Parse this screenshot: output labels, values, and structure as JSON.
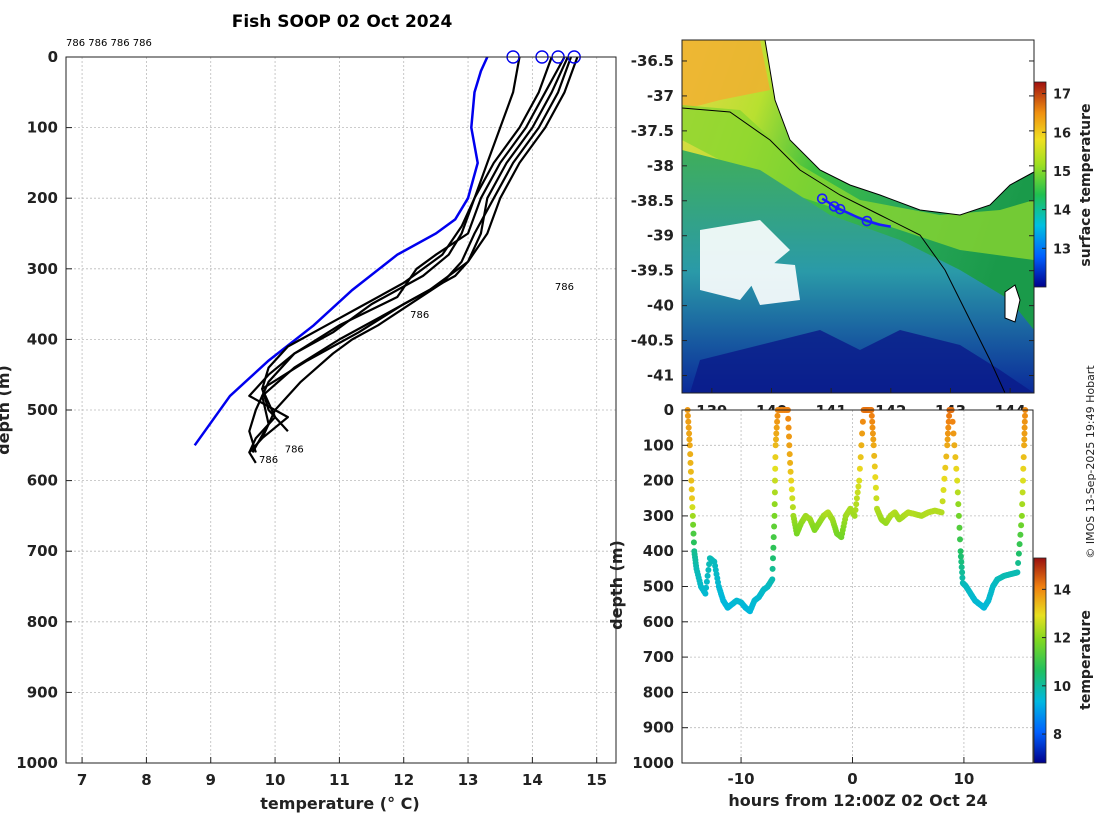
{
  "title": "Fish SOOP 02 Oct 2024",
  "credit": "© IMOS 13-Sep-2025 19:49 Hobart",
  "colors": {
    "profile": "#000000",
    "climatology": "#0000ee",
    "track": "#1a1aff"
  },
  "chart_data": [
    {
      "type": "line",
      "name": "temperature-depth-profiles",
      "xlabel": "temperature (° C)",
      "ylabel": "depth (m)",
      "xlim": [
        6.75,
        15.3
      ],
      "ylim": [
        1000,
        0
      ],
      "xticks": [
        7,
        8,
        9,
        10,
        11,
        12,
        13,
        14,
        15
      ],
      "yticks": [
        0,
        100,
        200,
        300,
        400,
        500,
        600,
        700,
        800,
        900,
        1000
      ],
      "top_labels": "786 786 786 786",
      "profile_label": "786",
      "profile_label_points": [
        [
          14.35,
          330
        ],
        [
          12.1,
          370
        ],
        [
          10.15,
          560
        ],
        [
          9.75,
          575
        ]
      ],
      "surface_markers": [
        13.7,
        14.15,
        14.4,
        14.65
      ],
      "climatology": {
        "depth": [
          0,
          20,
          50,
          100,
          150,
          200,
          230,
          250,
          280,
          330,
          380,
          430,
          480,
          550
        ],
        "temp": [
          13.3,
          13.2,
          13.1,
          13.05,
          13.15,
          13.0,
          12.8,
          12.5,
          11.9,
          11.2,
          10.6,
          9.9,
          9.3,
          8.75
        ]
      },
      "series": [
        {
          "name": "cast1",
          "depth": [
            0,
            50,
            100,
            150,
            200,
            250,
            290,
            320,
            350,
            380,
            400,
            420,
            460,
            500,
            540,
            560,
            575
          ],
          "temp": [
            14.6,
            14.4,
            14.1,
            13.7,
            13.4,
            13.1,
            12.9,
            12.6,
            12.1,
            11.6,
            11.2,
            10.9,
            10.4,
            10.0,
            9.8,
            9.6,
            9.7
          ]
        },
        {
          "name": "cast2",
          "depth": [
            0,
            50,
            100,
            150,
            200,
            250,
            280,
            300,
            340,
            380,
            420,
            460,
            500,
            530,
            560
          ],
          "temp": [
            14.5,
            14.2,
            13.9,
            13.5,
            13.2,
            13.0,
            12.5,
            12.2,
            11.9,
            11.0,
            10.3,
            9.9,
            9.7,
            9.6,
            9.7
          ]
        },
        {
          "name": "cast3",
          "depth": [
            0,
            50,
            100,
            150,
            200,
            250,
            290,
            310,
            350,
            390,
            430,
            470,
            510,
            540,
            560
          ],
          "temp": [
            14.7,
            14.5,
            14.2,
            13.8,
            13.5,
            13.3,
            13.0,
            12.8,
            12.0,
            11.3,
            10.5,
            9.8,
            10.0,
            9.7,
            9.6
          ]
        },
        {
          "name": "cast4",
          "depth": [
            0,
            50,
            100,
            150,
            200,
            250,
            280,
            310,
            350,
            390,
            420,
            450,
            480,
            510,
            540
          ],
          "temp": [
            14.3,
            14.1,
            13.8,
            13.4,
            13.1,
            12.9,
            12.7,
            12.3,
            11.5,
            10.9,
            10.3,
            9.9,
            9.6,
            10.2,
            9.8
          ]
        },
        {
          "name": "cast5",
          "depth": [
            0,
            50,
            100,
            150,
            200,
            250,
            290,
            330,
            360,
            400,
            440,
            480,
            520,
            560
          ],
          "temp": [
            14.55,
            14.3,
            14.0,
            13.6,
            13.3,
            13.2,
            13.0,
            12.4,
            11.8,
            11.0,
            10.3,
            9.8,
            9.9,
            9.65
          ]
        },
        {
          "name": "cast6",
          "depth": [
            0,
            50,
            100,
            150,
            200,
            240,
            280,
            320,
            350,
            380,
            410,
            440,
            470,
            500,
            530
          ],
          "temp": [
            13.8,
            13.7,
            13.5,
            13.3,
            13.1,
            12.9,
            12.6,
            12.0,
            11.4,
            10.8,
            10.2,
            9.9,
            9.8,
            9.9,
            10.2
          ]
        }
      ]
    },
    {
      "type": "heatmap",
      "name": "surface-temperature-map",
      "xticks": [
        139,
        140,
        141,
        142,
        143,
        144
      ],
      "ytick_labels": [
        "-36.5",
        "-37",
        "-37.5",
        "-38",
        "-38.5",
        "-39",
        "-39.5",
        "-40",
        "-40.5",
        "-41"
      ],
      "yticks": [
        -36.5,
        -37,
        -37.5,
        -38,
        -38.5,
        -39,
        -39.5,
        -40,
        -40.5,
        -41
      ],
      "xlim": [
        138.5,
        144.4
      ],
      "ylim": [
        -41.25,
        -36.2
      ],
      "colorbar": {
        "label": "surface temperature",
        "range": [
          12.0,
          17.3
        ],
        "ticks": [
          13,
          14,
          15,
          16,
          17
        ]
      },
      "track": {
        "lon": [
          140.85,
          140.95,
          141.05,
          141.15,
          141.3,
          141.45,
          141.6,
          141.8,
          142.0
        ],
        "lat": [
          -38.47,
          -38.52,
          -38.58,
          -38.62,
          -38.68,
          -38.74,
          -38.79,
          -38.84,
          -38.87
        ]
      },
      "track_markers": {
        "lon": [
          140.85,
          141.05,
          141.15,
          141.6
        ],
        "lat": [
          -38.47,
          -38.58,
          -38.62,
          -38.79
        ]
      }
    },
    {
      "type": "scatter",
      "name": "depth-vs-time",
      "xlabel": "hours from 12:00Z 02 Oct 24",
      "ylabel": "depth (m)",
      "xlim": [
        -15.3,
        16.2
      ],
      "ylim": [
        1000,
        0
      ],
      "xticks": [
        -10,
        0,
        10
      ],
      "yticks": [
        0,
        100,
        200,
        300,
        400,
        500,
        600,
        700,
        800,
        900,
        1000
      ],
      "colorbar": {
        "label": "temperature",
        "range": [
          6.8,
          15.3
        ],
        "ticks": [
          8,
          10,
          12,
          14
        ]
      },
      "time": [
        -14.8,
        -14.6,
        -14.4,
        -14.2,
        -14.0,
        -13.6,
        -13.2,
        -12.8,
        -12.4,
        -12.0,
        -11.6,
        -11.2,
        -10.8,
        -10.4,
        -10.0,
        -9.6,
        -9.2,
        -8.8,
        -8.4,
        -8.0,
        -7.6,
        -7.2,
        -7.0,
        -6.9,
        -6.7,
        -5.8,
        -5.6,
        -5.3,
        -5.0,
        -4.6,
        -4.2,
        -3.8,
        -3.4,
        -3.0,
        -2.6,
        -2.2,
        -1.8,
        -1.4,
        -1.0,
        -0.6,
        -0.2,
        0.2,
        0.6,
        1.0,
        1.4,
        1.7,
        1.9,
        2.2,
        2.6,
        3.0,
        3.4,
        3.8,
        4.2,
        4.6,
        5.0,
        5.6,
        6.2,
        6.8,
        7.4,
        8.0,
        8.5,
        8.7,
        8.9,
        9.4,
        9.7,
        9.9,
        10.2,
        10.6,
        11.0,
        11.4,
        11.8,
        12.2,
        12.6,
        13.0,
        13.6,
        14.2,
        14.8,
        15.2,
        15.4,
        15.5
      ],
      "depth": [
        0,
        100,
        250,
        400,
        450,
        500,
        520,
        420,
        430,
        500,
        540,
        560,
        550,
        540,
        545,
        560,
        570,
        540,
        530,
        510,
        500,
        480,
        300,
        100,
        0,
        0,
        150,
        300,
        350,
        320,
        300,
        310,
        340,
        320,
        300,
        290,
        310,
        350,
        360,
        300,
        280,
        300,
        200,
        0,
        0,
        0,
        100,
        280,
        310,
        320,
        300,
        290,
        310,
        300,
        290,
        295,
        300,
        290,
        285,
        290,
        100,
        0,
        0,
        200,
        400,
        490,
        500,
        520,
        540,
        550,
        560,
        540,
        500,
        480,
        470,
        465,
        460,
        300,
        100,
        0
      ],
      "temp": [
        13.8,
        13.6,
        13.2,
        10.2,
        9.8,
        9.6,
        9.5,
        9.8,
        9.7,
        9.5,
        9.4,
        9.4,
        9.4,
        9.5,
        9.5,
        9.4,
        9.4,
        9.5,
        9.5,
        9.6,
        9.6,
        9.8,
        11.8,
        13.4,
        14.0,
        14.1,
        13.5,
        12.2,
        11.8,
        12.0,
        12.2,
        12.2,
        11.9,
        12.0,
        12.2,
        12.4,
        12.2,
        11.8,
        11.7,
        12.2,
        12.3,
        12.2,
        12.8,
        14.2,
        14.3,
        14.2,
        13.6,
        12.4,
        12.2,
        12.1,
        12.3,
        12.4,
        12.2,
        12.3,
        12.4,
        12.4,
        12.3,
        12.4,
        12.4,
        12.4,
        13.6,
        14.3,
        14.3,
        12.8,
        10.6,
        9.8,
        9.7,
        9.6,
        9.5,
        9.5,
        9.4,
        9.5,
        9.6,
        9.7,
        9.8,
        9.8,
        9.8,
        12.0,
        13.6,
        14.0
      ]
    }
  ]
}
